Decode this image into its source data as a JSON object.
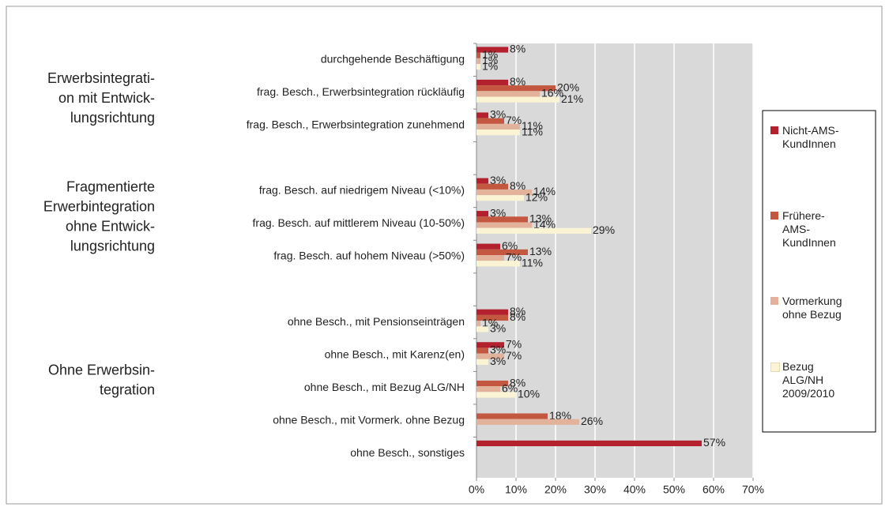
{
  "chart_data": {
    "type": "bar",
    "orientation": "horizontal",
    "categories": [
      "durchgehende Beschäftigung",
      "frag. Besch., Erwerbsintegration rückläufig",
      "frag. Besch., Erwerbsintegration zunehmend",
      null,
      "frag. Besch. auf niedrigem Niveau (<10%)",
      "frag. Besch. auf mittlerem Niveau (10-50%)",
      "frag. Besch. auf hohem Niveau (>50%)",
      null,
      "ohne Besch., mit Pensionseinträgen",
      "ohne Besch., mit Karenz(en)",
      "ohne Besch., mit Bezug ALG/NH",
      "ohne Besch., mit Vormerk. ohne Bezug",
      "ohne Besch., sonstiges"
    ],
    "groups": [
      {
        "lines": [
          "Erwerbsintegrati-",
          "on mit Entwick-",
          "lungsrichtung"
        ]
      },
      {
        "lines": [
          "Fragmentierte",
          "Erwerbintegration",
          "ohne Entwick-",
          "lungsrichtung"
        ]
      },
      {
        "lines": [
          "Ohne Erwerbsin-",
          "tegration"
        ]
      }
    ],
    "series": [
      {
        "name": "Nicht-AMS-KundInnen",
        "color": "#b3212f",
        "values": [
          8,
          8,
          3,
          null,
          3,
          3,
          6,
          null,
          8,
          7,
          null,
          null,
          57
        ],
        "value_labels": [
          "8%",
          "8%",
          "3%",
          null,
          "3%",
          "3%",
          "6%",
          null,
          "8%",
          "7%",
          null,
          null,
          "57%"
        ]
      },
      {
        "name": "Frühere-AMS-KundInnen",
        "color": "#c4573f",
        "values": [
          1,
          20,
          7,
          null,
          8,
          13,
          13,
          null,
          8,
          3,
          8,
          18,
          null
        ],
        "value_labels": [
          "1%",
          "20%",
          "7%",
          null,
          "8%",
          "13%",
          "13%",
          null,
          "8%",
          "3%",
          "8%",
          "18%",
          null
        ]
      },
      {
        "name": "Vormerkung ohne Bezug",
        "color": "#e2b39a",
        "values": [
          1,
          16,
          11,
          null,
          14,
          14,
          7,
          null,
          1,
          7,
          6,
          26,
          null
        ],
        "value_labels": [
          "1%",
          "16%",
          "11%",
          null,
          "14%",
          "14%",
          "7%",
          null,
          "1%",
          "7%",
          "6%",
          "26%",
          null
        ]
      },
      {
        "name": "Bezug ALG/NH 2009/2010",
        "color": "#fbf4d4",
        "values": [
          1,
          21,
          11,
          null,
          12,
          29,
          11,
          null,
          3,
          3,
          10,
          null,
          null
        ],
        "value_labels": [
          "1%",
          "21%",
          "11%",
          null,
          "12%",
          "29%",
          "11%",
          null,
          "3%",
          "3%",
          "10%",
          null,
          null
        ]
      }
    ],
    "xlim": [
      0,
      70
    ],
    "xticks": [
      {
        "value": 0,
        "label": "0%"
      },
      {
        "value": 10,
        "label": "10%"
      },
      {
        "value": 20,
        "label": "20%"
      },
      {
        "value": 30,
        "label": "30%"
      },
      {
        "value": 40,
        "label": "40%"
      },
      {
        "value": 50,
        "label": "50%"
      },
      {
        "value": 60,
        "label": "60%"
      },
      {
        "value": 70,
        "label": "70%"
      }
    ],
    "grid": true,
    "legend": "right"
  }
}
